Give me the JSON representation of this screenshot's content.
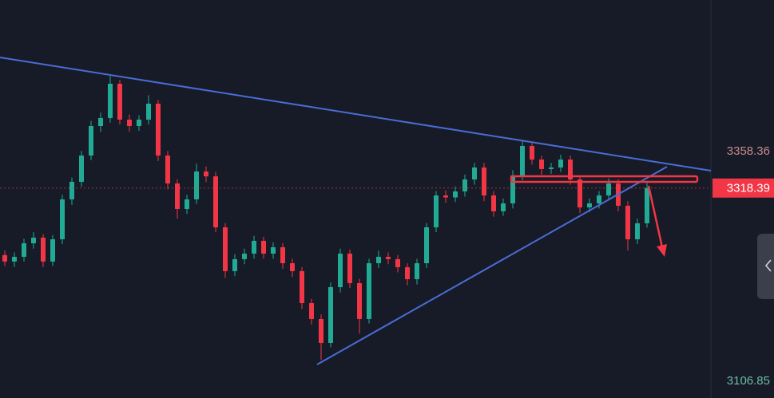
{
  "chart_data": {
    "type": "candlestick",
    "open": [
      3245,
      3237.9,
      3243.1,
      3257.9,
      3264.1,
      3237.9,
      3262.3,
      3306.0,
      3325.2,
      3354.0,
      3386.3,
      3395.1,
      3432.6,
      3393.3,
      3386.3,
      3393.3,
      3410.8,
      3354.0,
      3323.4,
      3295.5,
      3306.0,
      3336.5,
      3331.2,
      3275.4,
      3227.4,
      3240.5,
      3246.6,
      3260.6,
      3246.6,
      3253.6,
      3236.1,
      3227.4,
      3192.4,
      3175.0,
      3148.8,
      3209.9,
      3246.6,
      3214.3,
      3175.0,
      3236.1,
      3243.1,
      3240.5,
      3231.7,
      3218.6,
      3236.1,
      3275.4,
      3310.3,
      3308.1,
      3314.7,
      3327.8,
      3340.9,
      3310.3,
      3292.9,
      3301.6,
      3332.2,
      3364.5,
      3349.6,
      3339.2,
      3340.9,
      3349.6,
      3327.8,
      3297.2,
      3301.6,
      3310.3,
      3323.4,
      3299.0,
      3262.3,
      3279.8
    ],
    "high": [
      3250,
      3248,
      3263,
      3270,
      3268,
      3267,
      3311,
      3330,
      3359,
      3392,
      3401,
      3441,
      3437,
      3399,
      3398,
      3420,
      3415,
      3359,
      3328,
      3311,
      3345,
      3342,
      3336,
      3280,
      3246,
      3252,
      3266,
      3265,
      3259,
      3258,
      3241,
      3232,
      3197,
      3180,
      3215,
      3252,
      3251,
      3219,
      3241,
      3250,
      3248,
      3245,
      3236,
      3241,
      3280,
      3315,
      3316,
      3320,
      3333,
      3346,
      3346,
      3315,
      3307,
      3338,
      3370,
      3369,
      3354,
      3346,
      3355,
      3354,
      3332,
      3307,
      3315,
      3329,
      3328,
      3304,
      3285,
      3324
    ],
    "low": [
      3233,
      3232,
      3238,
      3252,
      3232,
      3233,
      3257,
      3300,
      3320,
      3349,
      3380,
      3390,
      3388,
      3380,
      3381,
      3388,
      3348,
      3317,
      3285,
      3290,
      3301,
      3325,
      3270,
      3220,
      3222,
      3235,
      3241,
      3241,
      3241,
      3230,
      3221,
      3186,
      3169,
      3130,
      3144,
      3204,
      3209,
      3159,
      3170,
      3231,
      3235,
      3226,
      3212,
      3213,
      3231,
      3270,
      3302,
      3303,
      3309,
      3322,
      3304,
      3287,
      3288,
      3296,
      3327,
      3344,
      3333,
      3334,
      3336,
      3322,
      3291,
      3292,
      3296,
      3305,
      3293,
      3250,
      3257,
      3275
    ],
    "close": [
      3237.9,
      3243.1,
      3257.9,
      3264.1,
      3237.9,
      3262.3,
      3306.0,
      3325.2,
      3354.0,
      3386.3,
      3395.1,
      3432.6,
      3393.3,
      3386.3,
      3393.3,
      3410.8,
      3354.0,
      3323.4,
      3295.5,
      3306.0,
      3336.5,
      3331.2,
      3275.4,
      3227.4,
      3240.5,
      3246.6,
      3260.6,
      3246.6,
      3253.6,
      3236.1,
      3227.4,
      3192.4,
      3175.0,
      3148.8,
      3209.9,
      3246.6,
      3214.3,
      3175.0,
      3236.1,
      3243.1,
      3240.5,
      3231.7,
      3218.6,
      3236.1,
      3275.4,
      3310.3,
      3308.1,
      3314.7,
      3327.8,
      3340.9,
      3310.3,
      3292.9,
      3301.6,
      3332.2,
      3364.5,
      3349.6,
      3339.2,
      3340.9,
      3349.6,
      3327.8,
      3297.2,
      3301.6,
      3310.3,
      3323.4,
      3299.0,
      3262.3,
      3279.8,
      3318.39
    ],
    "up_color": "#22ab94",
    "down_color": "#f23645",
    "ylim": [
      3088.5,
      3524.3
    ],
    "yticks": [
      3358.36,
      3106.85
    ],
    "current_price": 3318.39,
    "current_price_color": "#f23645"
  }
}
